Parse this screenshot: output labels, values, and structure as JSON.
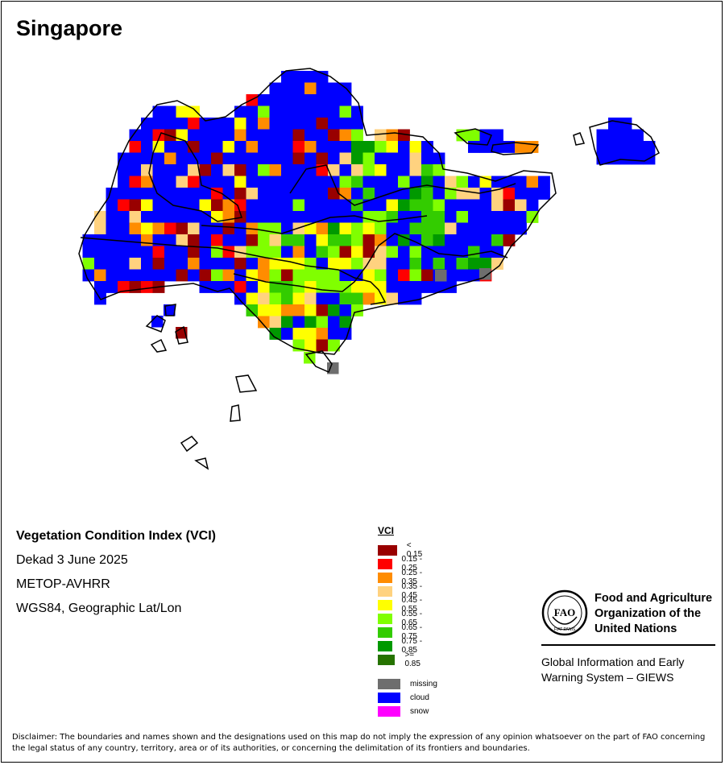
{
  "map": {
    "title": "Singapore",
    "cells_grid_info": "grid of VCI cells, value classes",
    "cells": []
  },
  "info": {
    "index_name": "Vegetation Condition Index (VCI)",
    "period": "Dekad 3 June 2025",
    "sensor": "METOP-AVHRR",
    "projection": "WGS84, Geographic Lat/Lon"
  },
  "legend": {
    "title": "VCI",
    "classes": [
      {
        "label": "< 0.15",
        "color": "#990000"
      },
      {
        "label": "0.15 - 0.25",
        "color": "#ff0000"
      },
      {
        "label": "0.25 - 0.35",
        "color": "#ff8c00"
      },
      {
        "label": "0.35 - 0.45",
        "color": "#ffd27f"
      },
      {
        "label": "0.45 - 0.55",
        "color": "#ffff00"
      },
      {
        "label": "0.55 - 0.65",
        "color": "#80ff00"
      },
      {
        "label": "0.65 - 0.75",
        "color": "#33cc00"
      },
      {
        "label": "0.75 - 0.85",
        "color": "#009900"
      },
      {
        "label": ">= 0.85",
        "color": "#267300"
      }
    ],
    "extra": [
      {
        "label": "missing",
        "color": "#6e6e6e"
      },
      {
        "label": "cloud",
        "color": "#0000ff"
      },
      {
        "label": "snow",
        "color": "#ff00ff"
      }
    ]
  },
  "org": {
    "name": "Food and Agriculture Organization of the United Nations",
    "name_line1": "Food and Agriculture",
    "name_line2": "Organization of the",
    "name_line3": "United Nations",
    "emblem_letters": "FAO",
    "emblem_motto": "FIAT PANIS",
    "system_line1": "Global Information and Early",
    "system_line2": "Warning System – GIEWS"
  },
  "disclaimer": "Disclaimer: The boundaries and names shown and the designations used on this map do not imply the expression of any opinion whatsoever on the part of FAO concerning the legal status of any country, territory, area or of its authorities, or concerning the delimitation of its frontiers and boundaries."
}
